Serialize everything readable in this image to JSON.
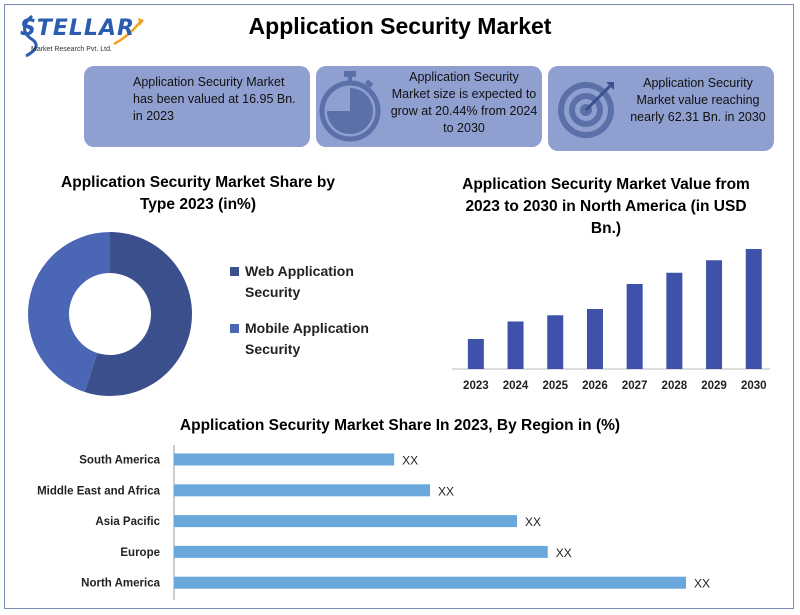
{
  "logo": {
    "text": "STELLAR",
    "subtext": "Market Research Pvt. Ltd."
  },
  "title": "Application Security Market",
  "cards": [
    {
      "text": "Application Security Market has been valued at 16.95 Bn. in 2023",
      "icon": "none"
    },
    {
      "text": "Application Security Market size is expected to grow at 20.44% from 2024 to 2030",
      "icon": "stopwatch-icon"
    },
    {
      "text": "Application Security Market value reaching nearly 62.31 Bn. in 2030",
      "icon": "target-icon"
    }
  ],
  "colors": {
    "card": "#8f9fd0",
    "dark_blue": "#3b4f8c",
    "mid_blue": "#4a66b5",
    "bar_blue": "#3d52a8",
    "hbar_blue": "#6aa8dc"
  },
  "chart_data": [
    {
      "type": "pie",
      "title": "Application Security Market Share by Type 2023 (in%)",
      "donut": true,
      "categories": [
        "Web Application Security",
        "Mobile Application Security"
      ],
      "values": [
        55,
        45
      ],
      "colors": [
        "#3b4f8c",
        "#4a66b5"
      ],
      "legend": "right"
    },
    {
      "type": "bar",
      "title": "Application Security Market Value from 2023 to 2030 in North America (in USD Bn.)",
      "categories": [
        "2023",
        "2024",
        "2025",
        "2026",
        "2027",
        "2028",
        "2029",
        "2030"
      ],
      "values": [
        24,
        38,
        43,
        48,
        68,
        77,
        87,
        96
      ],
      "ylim": [
        0,
        100
      ],
      "xlabel": "",
      "ylabel": "",
      "grid": false
    },
    {
      "type": "bar",
      "orientation": "horizontal",
      "title": "Application Security Market Share In 2023, By Region in (%)",
      "categories": [
        "South America",
        "Middle East and Africa",
        "Asia Pacific",
        "Europe",
        "North America"
      ],
      "values": [
        43,
        50,
        67,
        73,
        100
      ],
      "data_labels": [
        "XX",
        "XX",
        "XX",
        "XX",
        "XX"
      ],
      "xlim": [
        0,
        100
      ],
      "grid": false
    }
  ]
}
